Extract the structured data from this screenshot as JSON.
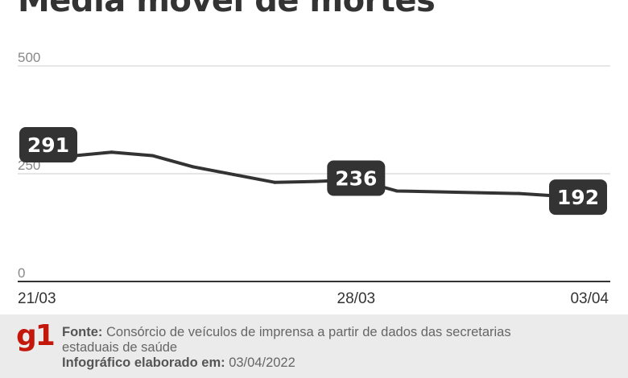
{
  "title": "Média móvel de mortes",
  "colors": {
    "line": "#333333",
    "label_bg": "#333333",
    "label_text": "#ffffff",
    "axis": "#333333",
    "grid": "#cccccc",
    "logo": "#c4170c",
    "footer_bg": "#ebebeb"
  },
  "chart_data": {
    "type": "line",
    "title": "Média móvel de mortes",
    "ylim": [
      0,
      500
    ],
    "y_ticks": [
      "500",
      "250",
      "0"
    ],
    "x_tick_labels": [
      "21/03",
      "28/03",
      "03/04"
    ],
    "x": [
      "21/03",
      "22/03",
      "23/03",
      "24/03",
      "25/03",
      "26/03",
      "27/03",
      "28/03",
      "29/03",
      "30/03",
      "31/03",
      "01/04",
      "02/04",
      "03/04"
    ],
    "series": [
      {
        "values": [
          291,
          300,
          292,
          266,
          248,
          230,
          232,
          236,
          210,
          208,
          206,
          204,
          198,
          192
        ]
      }
    ],
    "data_labels": [
      {
        "x": "21/03",
        "text": "291"
      },
      {
        "x": "28/03",
        "text": "236"
      },
      {
        "x": "03/04",
        "text": "192"
      }
    ],
    "grid": true
  },
  "footer": {
    "logo": "g1",
    "source_label": "Fonte:",
    "source_text": " Consórcio de veículos de imprensa a partir de dados das secretarias",
    "source_text_2": "estaduais de saúde",
    "date_label": "Infográfico elaborado em:",
    "date_text": " 03/04/2022"
  }
}
